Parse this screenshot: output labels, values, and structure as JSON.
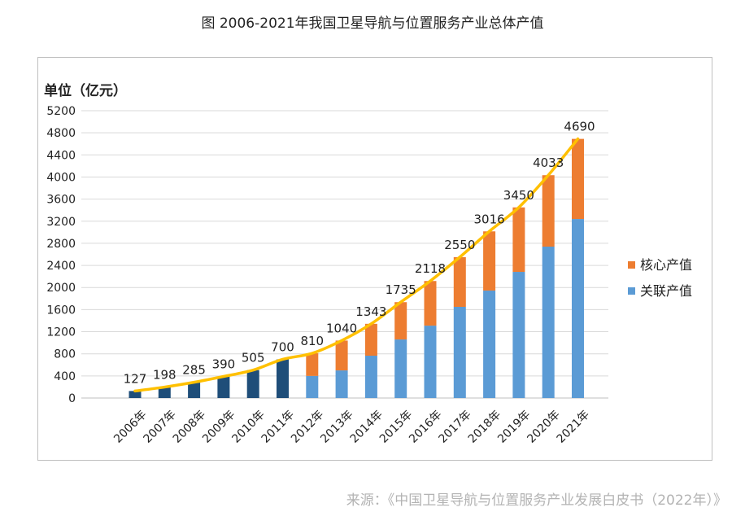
{
  "page_title": "图 2006-2021年我国卫星导航与位置服务产业总体产值",
  "source_text": "来源：《中国卫星导航与位置服务产业发展白皮书（2022年）》",
  "colors": {
    "pre2012_bar": "#1f4e79",
    "related_bar": "#5b9bd5",
    "core_bar": "#ed7d31",
    "trend_line": "#ffc000",
    "grid": "#d9d9d9"
  },
  "chart_data": {
    "type": "bar",
    "subtype": "stacked-with-trend-line",
    "title": "图 2006-2021年我国卫星导航与位置服务产业总体产值",
    "ylabel": "单位（亿元）",
    "xlabel": "",
    "ylim": [
      0,
      5200
    ],
    "yticks": [
      0,
      400,
      800,
      1200,
      1600,
      2000,
      2400,
      2800,
      3200,
      3600,
      4000,
      4400,
      4800,
      5200
    ],
    "grid": true,
    "legend_position": "right",
    "categories": [
      "2006年",
      "2007年",
      "2008年",
      "2009年",
      "2010年",
      "2011年",
      "2012年",
      "2013年",
      "2014年",
      "2015年",
      "2016年",
      "2017年",
      "2018年",
      "2019年",
      "2020年",
      "2021年"
    ],
    "totals": [
      127,
      198,
      285,
      390,
      505,
      700,
      810,
      1040,
      1343,
      1735,
      2118,
      2550,
      3016,
      3450,
      4033,
      4690
    ],
    "series": [
      {
        "name": "关联产值",
        "color": "#5b9bd5",
        "values": [
          null,
          null,
          null,
          null,
          null,
          null,
          400,
          500,
          766,
          1060,
          1310,
          1650,
          1945,
          2283,
          2740,
          3240
        ]
      },
      {
        "name": "核心产值",
        "color": "#ed7d31",
        "values": [
          null,
          null,
          null,
          null,
          null,
          null,
          410,
          540,
          577,
          675,
          808,
          900,
          1071,
          1167,
          1293,
          1450
        ]
      }
    ],
    "legend": [
      "核心产值",
      "关联产值"
    ],
    "data_labels": [
      "127",
      "198",
      "285",
      "390",
      "505",
      "700",
      "810",
      "1040",
      "1343",
      "1735",
      "2118",
      "2550",
      "3016",
      "3450",
      "4033",
      "4690"
    ]
  }
}
